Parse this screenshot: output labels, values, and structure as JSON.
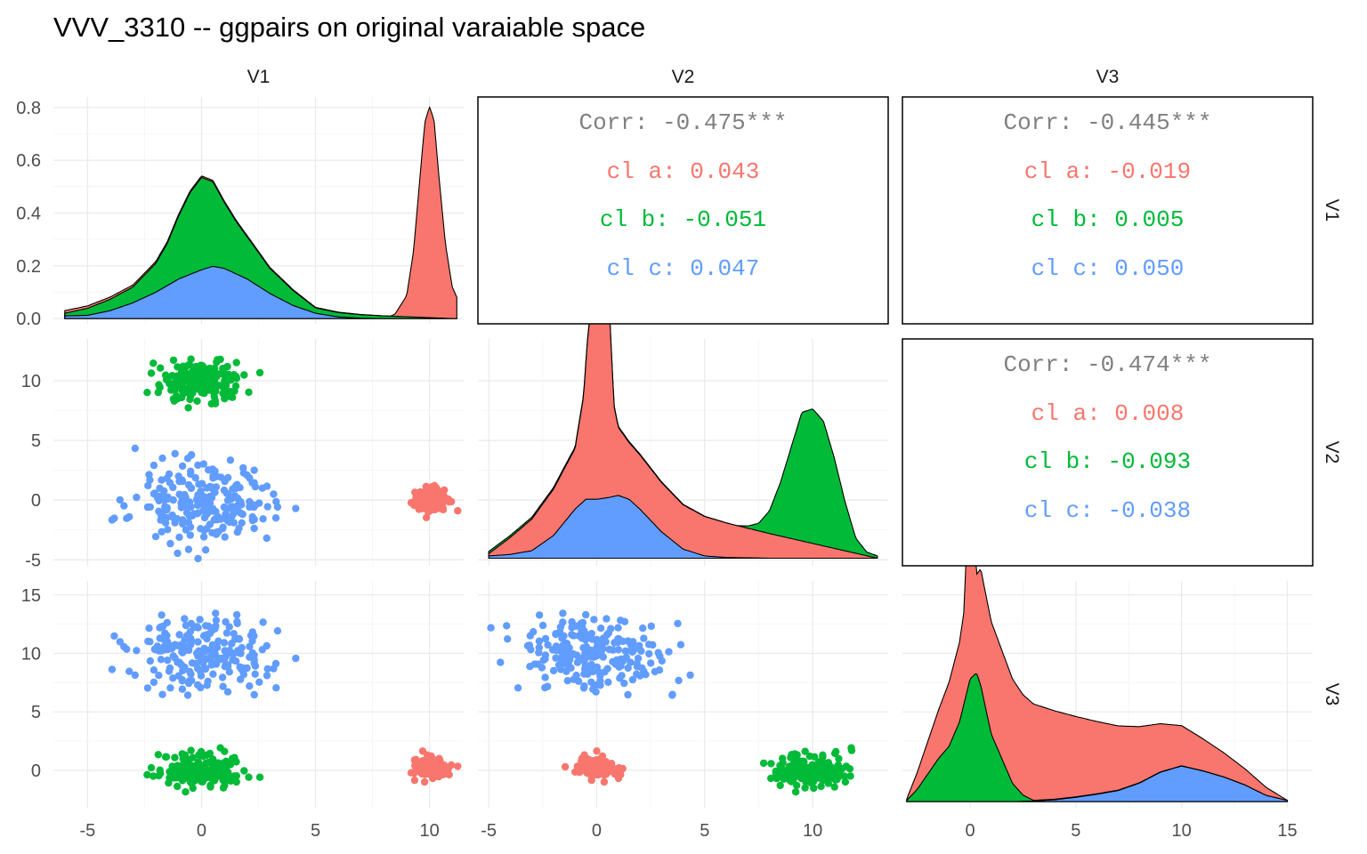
{
  "title": "VVV_3310 -- ggpairs on original varaiable space",
  "colors": {
    "cl a": "#F8766D",
    "cl b": "#00BA38",
    "cl c": "#619CFF",
    "corr_text": "#808080"
  },
  "chart_data": {
    "type": "scatter-matrix",
    "variables": [
      "V1",
      "V2",
      "V3"
    ],
    "groups": [
      "cl a",
      "cl b",
      "cl c"
    ],
    "axes": {
      "V1": {
        "lim": [
          -6.5,
          11.5
        ],
        "ticks": [
          -5,
          0,
          5,
          10
        ]
      },
      "V2": {
        "lim": [
          -5.5,
          13.5
        ],
        "ticks": [
          -5,
          0,
          5,
          10
        ]
      },
      "V3": {
        "lim": [
          -3.2,
          16.2
        ],
        "ticks": [
          0,
          5,
          10,
          15
        ]
      }
    },
    "density_axis": {
      "lim": [
        -0.02,
        0.84
      ],
      "ticks": [
        0.0,
        0.2,
        0.4,
        0.6,
        0.8
      ],
      "tick_labels": [
        "0.0",
        "0.2",
        "0.4",
        "0.6",
        "0.8"
      ]
    },
    "correlations": [
      {
        "row": "V1",
        "col": "V2",
        "corr": "Corr: -0.475***",
        "groups": [
          {
            "label": "cl a: 0.043",
            "group": "cl a"
          },
          {
            "label": "cl b: -0.051",
            "group": "cl b"
          },
          {
            "label": "cl c: 0.047",
            "group": "cl c"
          }
        ]
      },
      {
        "row": "V1",
        "col": "V3",
        "corr": "Corr: -0.445***",
        "groups": [
          {
            "label": "cl a: -0.019",
            "group": "cl a"
          },
          {
            "label": "cl b: 0.005",
            "group": "cl b"
          },
          {
            "label": "cl c: 0.050",
            "group": "cl c"
          }
        ]
      },
      {
        "row": "V2",
        "col": "V3",
        "corr": "Corr: -0.474***",
        "groups": [
          {
            "label": "cl a: 0.008",
            "group": "cl a"
          },
          {
            "label": "cl b: -0.093",
            "group": "cl b"
          },
          {
            "label": "cl c: -0.038",
            "group": "cl c"
          }
        ]
      }
    ],
    "densities": {
      "V1": {
        "ylim": [
          -0.02,
          0.84
        ],
        "stack": [
          {
            "group": "cl c",
            "x": [
              -6,
              -5,
              -4,
              -3,
              -2,
              -1,
              0,
              0.5,
              1,
              2,
              3,
              4,
              5,
              6,
              7,
              8,
              9,
              10,
              11
            ],
            "y": [
              0.01,
              0.012,
              0.03,
              0.06,
              0.1,
              0.15,
              0.185,
              0.198,
              0.19,
              0.15,
              0.095,
              0.05,
              0.02,
              0.006,
              0.001,
              0,
              0,
              0,
              0
            ]
          },
          {
            "group": "cl b",
            "x": [
              -6,
              -3,
              -2,
              -1.5,
              -1,
              -0.5,
              0,
              0.5,
              1,
              1.5,
              2,
              3,
              5,
              11
            ],
            "y": [
              0.01,
              0.06,
              0.11,
              0.16,
              0.24,
              0.31,
              0.35,
              0.32,
              0.25,
              0.2,
              0.16,
              0.095,
              0.02,
              0
            ]
          },
          {
            "group": "cl a",
            "x": [
              -6,
              8.3,
              8.5,
              9,
              9.3,
              9.6,
              9.8,
              10,
              10.2,
              10.4,
              10.7,
              11,
              11.2
            ],
            "y": [
              0.01,
              0,
              0.01,
              0.08,
              0.25,
              0.55,
              0.74,
              0.8,
              0.75,
              0.55,
              0.28,
              0.12,
              0.08
            ]
          }
        ]
      },
      "V2": {
        "ylim": [
          -0.01,
          0.29
        ],
        "stack": [
          {
            "group": "cl c",
            "x": [
              -5,
              -4,
              -3,
              -2,
              -1,
              -0.5,
              0,
              0.5,
              1,
              1.5,
              2,
              3,
              4,
              5,
              6,
              8,
              10,
              13
            ],
            "y": [
              0.003,
              0.005,
              0.01,
              0.03,
              0.065,
              0.078,
              0.078,
              0.08,
              0.083,
              0.078,
              0.065,
              0.035,
              0.012,
              0.003,
              0.001,
              0,
              0,
              0
            ]
          },
          {
            "group": "cl a",
            "x": [
              -5,
              -1.5,
              -1,
              -0.6,
              -0.4,
              -0.2,
              0,
              0.2,
              0.4,
              0.6,
              0.8,
              1,
              1.5,
              13
            ],
            "y": [
              0.003,
              0.071,
              0.08,
              0.14,
              0.22,
              0.26,
              0.25,
              0.26,
              0.29,
              0.24,
              0.12,
              0.09,
              0.075,
              0
            ]
          },
          {
            "group": "cl b",
            "x": [
              -5,
              6.5,
              7,
              7.5,
              8,
              8.5,
              9,
              9.5,
              10,
              10.5,
              11,
              11.5,
              12,
              12.5,
              13
            ],
            "y": [
              0.003,
              0,
              0.003,
              0.01,
              0.03,
              0.07,
              0.12,
              0.17,
              0.178,
              0.165,
              0.12,
              0.065,
              0.02,
              0.005,
              0.003
            ]
          }
        ]
      },
      "V3": {
        "ylim": [
          -0.01,
          0.36
        ],
        "stack": [
          {
            "group": "cl c",
            "x": [
              -3,
              -1,
              0,
              2,
              3,
              4,
              5,
              6,
              7,
              8,
              9,
              10,
              11,
              12,
              13,
              14,
              15
            ],
            "y": [
              0,
              0,
              0,
              0,
              0.001,
              0.003,
              0.007,
              0.012,
              0.018,
              0.03,
              0.048,
              0.058,
              0.05,
              0.04,
              0.027,
              0.01,
              0.002
            ]
          },
          {
            "group": "cl b",
            "x": [
              -3,
              -2.5,
              -2,
              -1.5,
              -1,
              -0.5,
              0,
              0.3,
              0.5,
              1,
              1.5,
              2,
              2.5,
              3,
              15
            ],
            "y": [
              0.002,
              0.02,
              0.045,
              0.07,
              0.09,
              0.13,
              0.2,
              0.21,
              0.19,
              0.11,
              0.07,
              0.03,
              0.01,
              0.001,
              0
            ]
          },
          {
            "group": "cl a",
            "x": [
              -3,
              -0.5,
              -0.3,
              -0.15,
              0,
              0.15,
              0.3,
              0.5,
              15
            ],
            "y": [
              0.002,
              0.13,
              0.15,
              0.25,
              0.345,
              0.25,
              0.16,
              0.19,
              0
            ]
          }
        ]
      }
    }
  }
}
